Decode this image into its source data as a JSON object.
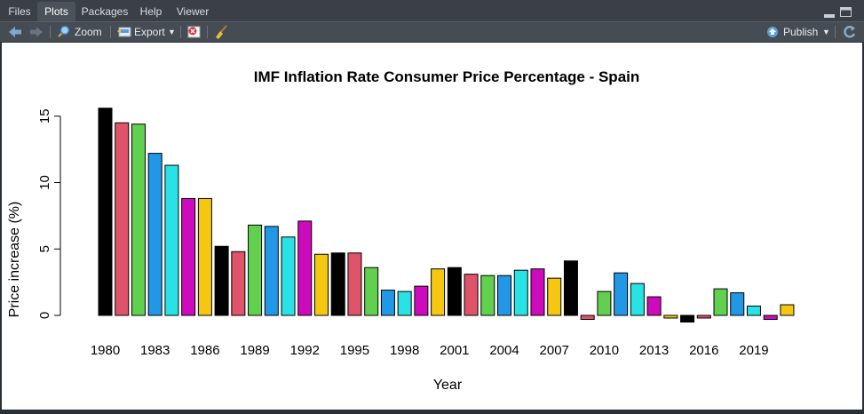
{
  "tabs": [
    {
      "label": "Files"
    },
    {
      "label": "Plots"
    },
    {
      "label": "Packages"
    },
    {
      "label": "Help"
    },
    {
      "label": "Viewer"
    }
  ],
  "active_tab": "Plots",
  "toolbar": {
    "zoom_label": "Zoom",
    "export_label": "Export",
    "publish_label": "Publish"
  },
  "icons": {
    "back": "arrow-left-icon",
    "forward": "arrow-right-icon",
    "zoom": "magnifier-icon",
    "export": "export-icon",
    "delete": "delete-plot-icon",
    "clear": "broom-icon",
    "publish": "publish-icon",
    "refresh": "refresh-icon"
  },
  "colors": {
    "palette": [
      "#000000",
      "#df536b",
      "#61d04f",
      "#2297e6",
      "#28e2e5",
      "#cd0bbc",
      "#f5c710"
    ]
  },
  "chart_data": {
    "type": "bar",
    "title": "IMF Inflation Rate Consumer Price Percentage - Spain",
    "xlabel": "Year",
    "ylabel": "Price increase (%)",
    "categories": [
      "1980",
      "1981",
      "1982",
      "1983",
      "1984",
      "1985",
      "1986",
      "1987",
      "1988",
      "1989",
      "1990",
      "1991",
      "1992",
      "1993",
      "1994",
      "1995",
      "1996",
      "1997",
      "1998",
      "1999",
      "2000",
      "2001",
      "2002",
      "2003",
      "2004",
      "2005",
      "2006",
      "2007",
      "2008",
      "2009",
      "2010",
      "2011",
      "2012",
      "2013",
      "2014",
      "2015",
      "2016",
      "2017",
      "2018",
      "2019",
      "2020",
      "2021"
    ],
    "values": [
      15.6,
      14.5,
      14.4,
      12.2,
      11.3,
      8.8,
      8.8,
      5.2,
      4.8,
      6.8,
      6.7,
      5.9,
      7.1,
      4.6,
      4.7,
      4.7,
      3.6,
      1.9,
      1.8,
      2.2,
      3.5,
      3.6,
      3.1,
      3.0,
      3.0,
      3.4,
      3.5,
      2.8,
      4.1,
      -0.3,
      1.8,
      3.2,
      2.4,
      1.4,
      -0.2,
      -0.5,
      -0.2,
      2.0,
      1.7,
      0.7,
      -0.3,
      0.8
    ],
    "x_tick_labels": [
      "1980",
      "1983",
      "1986",
      "1989",
      "1992",
      "1995",
      "1998",
      "2001",
      "2004",
      "2007",
      "2010",
      "2013",
      "2016",
      "2019"
    ],
    "y_ticks": [
      0,
      5,
      10,
      15
    ],
    "ylim": [
      -0.5,
      15.6
    ],
    "grid": false,
    "legend": "none"
  }
}
